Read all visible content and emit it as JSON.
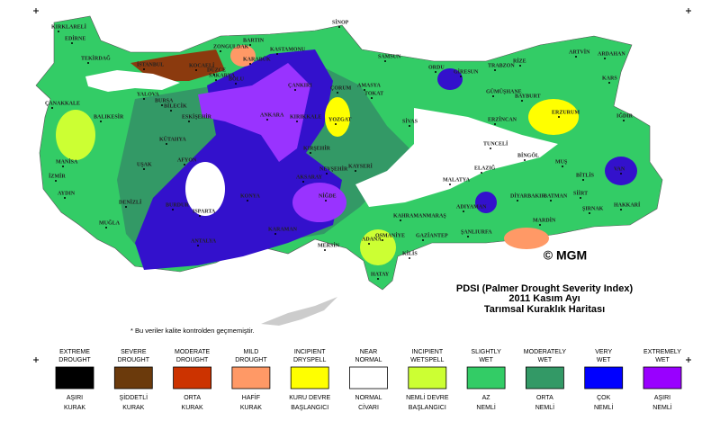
{
  "header": {
    "title_lines": [
      "PDSI (Palmer Drought Severity Index)",
      "2011 Kasım Ayı",
      "Tarımsal Kuraklık Haritası"
    ],
    "credit": "© MGM",
    "note": "* Bu veriler kalite kontrolden geçmemiştir."
  },
  "legend": [
    {
      "label": [
        "EXTREME",
        "DROUGHT"
      ],
      "color": "#000000",
      "label_tr": [
        "AŞIRI",
        "KURAK"
      ]
    },
    {
      "label": [
        "SEVERE",
        "DROUGHT"
      ],
      "color": "#6b3a0c",
      "label_tr": [
        "ŞİDDETLİ",
        "KURAK"
      ]
    },
    {
      "label": [
        "MODERATE",
        "DROUGHT"
      ],
      "color": "#cc3300",
      "label_tr": [
        "ORTA",
        "KURAK"
      ]
    },
    {
      "label": [
        "MILD",
        "DROUGHT"
      ],
      "color": "#ff9966",
      "label_tr": [
        "HAFİF",
        "KURAK"
      ]
    },
    {
      "label": [
        "INCIPIENT",
        "DRYSPELL"
      ],
      "color": "#ffff00",
      "label_tr": [
        "KURU DEVRE",
        "BAŞLANGICI"
      ]
    },
    {
      "label": [
        "NEAR",
        "NORMAL"
      ],
      "color": "#ffffff",
      "label_tr": [
        "NORMAL",
        "CİVARI"
      ]
    },
    {
      "label": [
        "INCIPIENT",
        "WETSPELL"
      ],
      "color": "#ccff33",
      "label_tr": [
        "NEMLİ DEVRE",
        "BAŞLANGICI"
      ]
    },
    {
      "label": [
        "SLIGHTLY",
        "WET"
      ],
      "color": "#33cc66",
      "label_tr": [
        "AZ",
        "NEMLİ"
      ]
    },
    {
      "label": [
        "MODERATELY",
        "WET"
      ],
      "color": "#339966",
      "label_tr": [
        "ORTA",
        "NEMLİ"
      ]
    },
    {
      "label": [
        "VERY",
        "WET"
      ],
      "color": "#0000ff",
      "label_tr": [
        "ÇOK",
        "NEMLİ"
      ]
    },
    {
      "label": [
        "EXTREMELY",
        "WET"
      ],
      "color": "#9900ff",
      "label_tr": [
        "AŞIRI",
        "NEMLİ"
      ]
    }
  ],
  "cities": [
    "KIRKLARELİ",
    "EDİRNE",
    "TEKİRDAĞ",
    "İSTANBUL",
    "KOCAELİ",
    "SAKARYA",
    "ZONGULDAK",
    "BARTIN",
    "KASTAMONU",
    "SİNOP",
    "SAMSUN",
    "ORDU",
    "GİRESUN",
    "TRABZON",
    "RİZE",
    "ARTVİN",
    "ARDAHAN",
    "KARS",
    "IĞDIR",
    "ERZURUM",
    "BAYBURT",
    "GÜMÜŞHANE",
    "ERZİNCAN",
    "TUNCELİ",
    "BİNGÖL",
    "MUŞ",
    "BİTLİS",
    "VAN",
    "HAKKARİ",
    "ŞIRNAK",
    "SİİRT",
    "BATMAN",
    "DİYARBAKIR",
    "MARDİN",
    "ŞANLIURFA",
    "ADIYAMAN",
    "MALATYA",
    "ELAZIĞ",
    "SİVAS",
    "TOKAT",
    "AMASYA",
    "ÇORUM",
    "YOZGAT",
    "KIRŞEHİR",
    "KAYSERİ",
    "NEVŞEHİR",
    "NİĞDE",
    "AKSARAY",
    "KONYA",
    "KARAMAN",
    "MERSİN",
    "ADANA",
    "OSMANİYE",
    "HATAY",
    "KİLİS",
    "GAZİANTEP",
    "KAHRAMANMARAŞ",
    "ÇANKIRI",
    "ANKARA",
    "KIRIKKALE",
    "ESKİŞEHİR",
    "BİLECİK",
    "BURSA",
    "YALOVA",
    "BALIKESİR",
    "ÇANAKKALE",
    "MANİSA",
    "İZMİR",
    "AYDIN",
    "MUĞLA",
    "DENİZLİ",
    "UŞAK",
    "KÜTAHYA",
    "AFYON",
    "BURDUR",
    "ISPARTA",
    "ANTALYA",
    "BOLU",
    "DÜZCE",
    "KARABÜK"
  ]
}
